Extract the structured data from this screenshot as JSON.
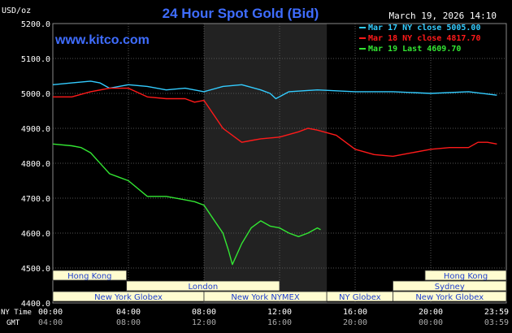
{
  "chart_data": {
    "type": "line",
    "title": "24 Hour Spot Gold (Bid)",
    "source_label": "www.kitco.com",
    "timestamp": "March 19, 2026 14:10",
    "ylabel": "USD/oz",
    "ylim": [
      4400,
      5200
    ],
    "y_ticks": [
      "4400.0",
      "4500.0",
      "4600.0",
      "4700.0",
      "4800.0",
      "4900.0",
      "5000.0",
      "5100.0",
      "5200.0"
    ],
    "x_ticks_ny": [
      "00:00",
      "04:00",
      "08:00",
      "12:00",
      "16:00",
      "20:00",
      "23:59"
    ],
    "x_ticks_gmt": [
      "04:00",
      "08:00",
      "12:00",
      "16:00",
      "20:00",
      "00:00",
      "03:59"
    ],
    "x_row_labels": [
      "NY Time",
      "GMT"
    ],
    "x_range_hours": [
      0,
      24
    ],
    "shaded_hours": [
      8,
      14.5
    ],
    "grid": true,
    "legend": [
      {
        "text": "Mar 17 NY close 5005.00",
        "color": "#33ccff"
      },
      {
        "text": "Mar 18 NY close 4817.70",
        "color": "#ff1a1a"
      },
      {
        "text": "Mar 19 Last 4609.70",
        "color": "#33e633"
      }
    ],
    "series": [
      {
        "name": "Mar 17 NY close 5005.00",
        "color": "#33ccff",
        "x": [
          0,
          1,
          2,
          2.5,
          3,
          4,
          5,
          6,
          7,
          8,
          9,
          10,
          11,
          11.5,
          11.8,
          12.5,
          14,
          16,
          18,
          20,
          22,
          23.5
        ],
        "y": [
          5025,
          5030,
          5035,
          5030,
          5015,
          5025,
          5020,
          5010,
          5015,
          5005,
          5020,
          5025,
          5010,
          5000,
          4985,
          5005,
          5010,
          5005,
          5005,
          5000,
          5005,
          4995
        ]
      },
      {
        "name": "Mar 18 NY close 4817.70",
        "color": "#ff1a1a",
        "x": [
          0,
          1,
          2,
          3,
          4,
          5,
          6,
          7,
          7.5,
          8,
          9,
          10,
          10.5,
          11,
          12,
          13,
          13.5,
          14,
          15,
          16,
          17,
          18,
          19,
          20,
          21,
          22,
          22.5,
          23,
          23.5
        ],
        "y": [
          4990,
          4990,
          5005,
          5015,
          5015,
          4990,
          4985,
          4985,
          4975,
          4980,
          4900,
          4860,
          4865,
          4870,
          4875,
          4890,
          4900,
          4895,
          4880,
          4840,
          4825,
          4820,
          4830,
          4840,
          4845,
          4845,
          4860,
          4860,
          4855
        ]
      },
      {
        "name": "Mar 19 Last 4609.70",
        "color": "#33e633",
        "x": [
          0,
          1,
          1.5,
          2,
          3,
          3.5,
          4,
          5,
          6,
          7,
          7.5,
          8,
          8.5,
          9,
          9.3,
          9.5,
          10,
          10.5,
          11,
          11.5,
          12,
          12.5,
          13,
          13.5,
          14,
          14.17
        ],
        "y": [
          4855,
          4850,
          4845,
          4830,
          4770,
          4760,
          4750,
          4705,
          4705,
          4695,
          4690,
          4680,
          4640,
          4600,
          4550,
          4510,
          4570,
          4615,
          4635,
          4620,
          4615,
          4600,
          4590,
          4600,
          4615,
          4610
        ]
      }
    ],
    "sessions": [
      {
        "label": "Hong Kong",
        "start": 0,
        "end": 3.9,
        "row": 0
      },
      {
        "label": "London",
        "start": 3.9,
        "end": 12,
        "row": 1
      },
      {
        "label": "New York Globex",
        "start": 0,
        "end": 8,
        "row": 2
      },
      {
        "label": "New York NYMEX",
        "start": 8,
        "end": 14.5,
        "row": 2
      },
      {
        "label": "NY Globex",
        "start": 14.5,
        "end": 18,
        "row": 2
      },
      {
        "label": "Hong Kong",
        "start": 19.7,
        "end": 24,
        "row": 0
      },
      {
        "label": "Sydney",
        "start": 18,
        "end": 24,
        "row": 1
      },
      {
        "label": "New York Globex",
        "start": 18,
        "end": 24,
        "row": 2
      }
    ],
    "colors": {
      "background": "#000000",
      "title": "#3f6dff",
      "source_label": "#3f6dff",
      "axis_text": "#ffffff",
      "grid": "#555555",
      "shaded": "#222222",
      "session_fill": "#fffcd0",
      "session_text": "#1f3fcc"
    }
  }
}
